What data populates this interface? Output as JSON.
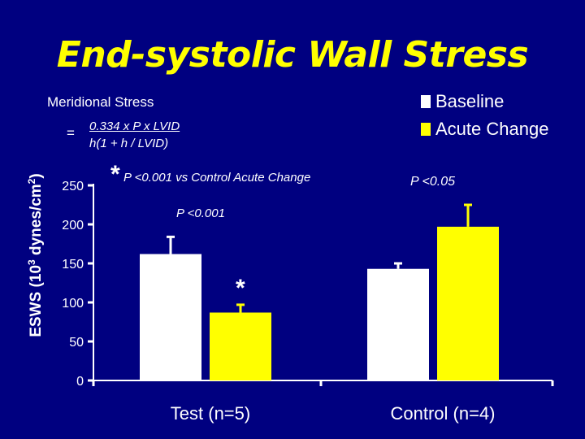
{
  "slide": {
    "title": "End-systolic Wall Stress",
    "subtitle": "Meridional Stress",
    "formula": {
      "equals": "=",
      "numerator": "0.334 x P x LVID",
      "denominator": "h(1 + h / LVID)"
    },
    "annotations": {
      "star_symbol": "*",
      "test_comparison": "P <0.001 vs Control Acute Change",
      "test_p": "P <0.001",
      "control_p": "P <0.05",
      "bar_star": "*"
    }
  },
  "colors": {
    "background": "#000080",
    "title": "#ffff00",
    "baseline": "#ffffff",
    "acute_change": "#ffff00",
    "axis": "#ffffff"
  },
  "chart_data": {
    "type": "bar",
    "title": "End-systolic Wall Stress",
    "ylabel": "ESWS (10",
    "ylabel_sup": "3",
    "ylabel_tail": " dynes/cm",
    "ylabel_sup2": "2",
    "ylabel_end": ")",
    "xlabel": "",
    "ylim": [
      0,
      250
    ],
    "yticks": [
      0,
      50,
      100,
      150,
      200,
      250
    ],
    "categories": [
      "Test (n=5)",
      "Control (n=4)"
    ],
    "legend_position": "top-right",
    "series": [
      {
        "name": "Baseline",
        "color": "#ffffff",
        "values": [
          162,
          143
        ],
        "errors": [
          22,
          7
        ]
      },
      {
        "name": "Acute Change",
        "color": "#ffff00",
        "values": [
          87,
          197
        ],
        "errors": [
          10,
          28
        ]
      }
    ]
  }
}
